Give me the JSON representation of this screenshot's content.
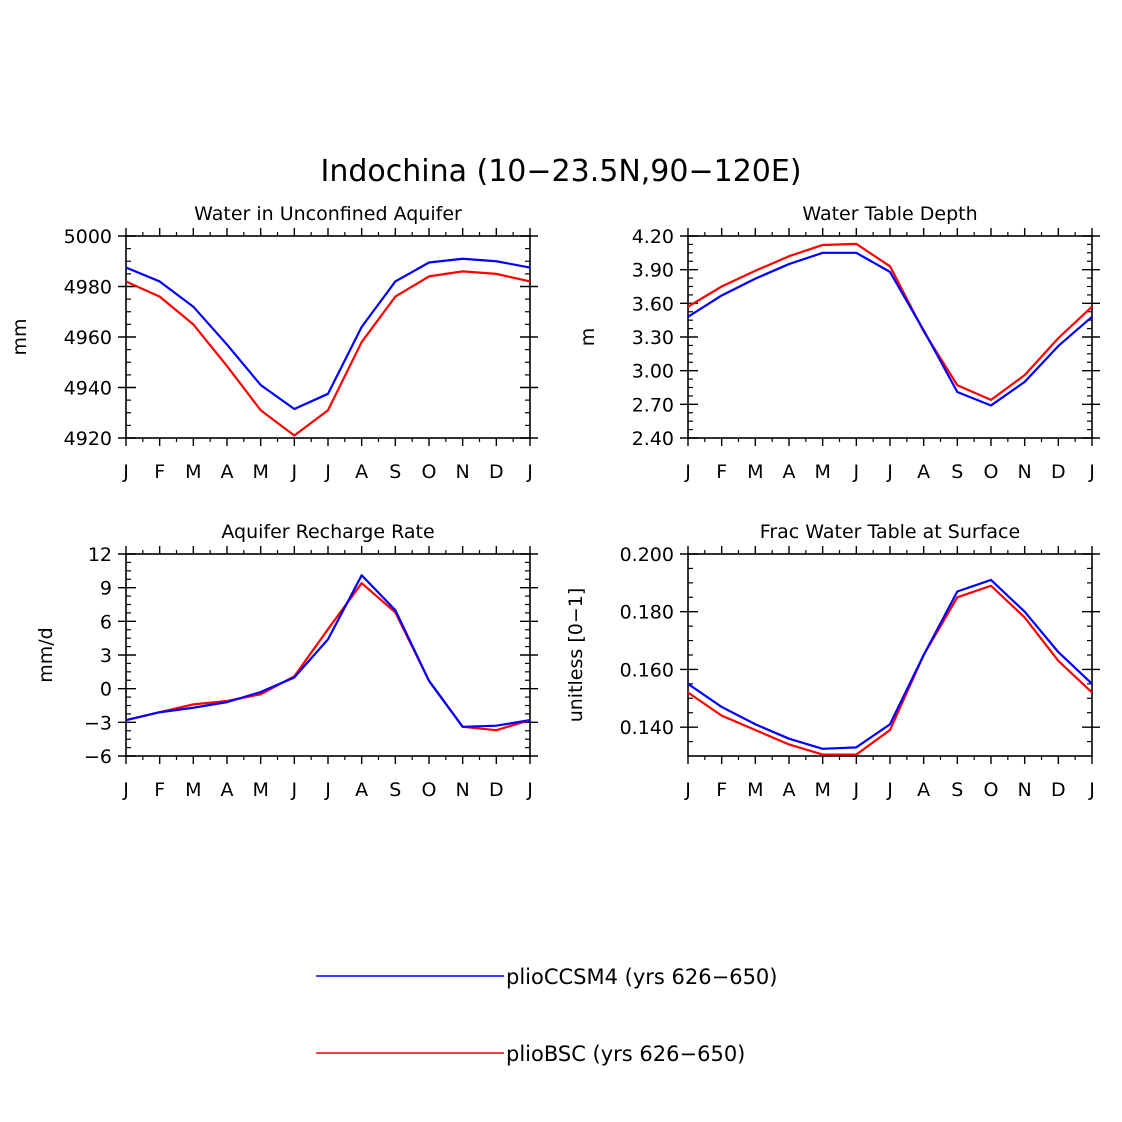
{
  "page_title": "Indochina (10−23.5N,90−120E)",
  "colors": {
    "pliocCSM4": "#0000ff",
    "plioBSC": "#ff0000",
    "axis": "#000000"
  },
  "legend": {
    "entries": [
      {
        "label": "plioCCSM4 (yrs 626−650)",
        "color": "#0000ff"
      },
      {
        "label": "plioBSC (yrs 626−650)",
        "color": "#ff0000"
      }
    ]
  },
  "chart_data": [
    {
      "type": "line",
      "title": "Water in Unconfined Aquifer",
      "ylabel": "mm",
      "xlabel": "",
      "categories": [
        "J",
        "F",
        "M",
        "A",
        "M",
        "J",
        "J",
        "A",
        "S",
        "O",
        "N",
        "D",
        "J"
      ],
      "ylim": [
        4920,
        5000
      ],
      "yticks": [
        4920,
        4940,
        4960,
        4980,
        5000
      ],
      "ytick_labels": [
        "4920",
        "4940",
        "4960",
        "4980",
        "5000"
      ],
      "series": [
        {
          "name": "plioCCSM4 (yrs 626−650)",
          "color": "#0000ff",
          "values": [
            4987.5,
            4982,
            4972,
            4957,
            4941,
            4931.5,
            4937.5,
            4964,
            4982,
            4989.5,
            4991,
            4990,
            4987.5
          ]
        },
        {
          "name": "plioBSC (yrs 626−650)",
          "color": "#ff0000",
          "values": [
            4982,
            4976,
            4965,
            4948.5,
            4931,
            4921,
            4931,
            4958,
            4976,
            4984,
            4986,
            4985,
            4982
          ]
        }
      ]
    },
    {
      "type": "line",
      "title": "Water Table Depth",
      "ylabel": "m",
      "xlabel": "",
      "categories": [
        "J",
        "F",
        "M",
        "A",
        "M",
        "J",
        "J",
        "A",
        "S",
        "O",
        "N",
        "D",
        "J"
      ],
      "ylim": [
        2.4,
        4.2
      ],
      "yticks": [
        2.4,
        2.7,
        3.0,
        3.3,
        3.6,
        3.9,
        4.2
      ],
      "ytick_labels": [
        "2.40",
        "2.70",
        "3.00",
        "3.30",
        "3.60",
        "3.90",
        "4.20"
      ],
      "series": [
        {
          "name": "plioCCSM4 (yrs 626−650)",
          "color": "#0000ff",
          "values": [
            3.48,
            3.67,
            3.82,
            3.95,
            4.05,
            4.05,
            3.88,
            3.36,
            2.81,
            2.69,
            2.9,
            3.22,
            3.48
          ]
        },
        {
          "name": "plioBSC (yrs 626−650)",
          "color": "#ff0000",
          "values": [
            3.57,
            3.75,
            3.89,
            4.02,
            4.12,
            4.13,
            3.93,
            3.35,
            2.87,
            2.74,
            2.96,
            3.29,
            3.57
          ]
        }
      ]
    },
    {
      "type": "line",
      "title": "Aquifer Recharge Rate",
      "ylabel": "mm/d",
      "xlabel": "",
      "categories": [
        "J",
        "F",
        "M",
        "A",
        "M",
        "J",
        "J",
        "A",
        "S",
        "O",
        "N",
        "D",
        "J"
      ],
      "ylim": [
        -6,
        12
      ],
      "yticks": [
        -6,
        -3,
        0,
        3,
        6,
        9,
        12
      ],
      "ytick_labels": [
        "−6",
        "−3",
        "0",
        "3",
        "6",
        "9",
        "12"
      ],
      "series": [
        {
          "name": "plioCCSM4 (yrs 626−650)",
          "color": "#0000ff",
          "values": [
            -2.8,
            -2.1,
            -1.7,
            -1.2,
            -0.3,
            1.0,
            4.4,
            10.1,
            7.0,
            0.7,
            -3.4,
            -3.3,
            -2.8
          ]
        },
        {
          "name": "plioBSC (yrs 626−650)",
          "color": "#ff0000",
          "values": [
            -2.8,
            -2.1,
            -1.4,
            -1.1,
            -0.5,
            1.1,
            5.3,
            9.4,
            6.8,
            0.7,
            -3.4,
            -3.7,
            -2.8
          ]
        }
      ]
    },
    {
      "type": "line",
      "title": "Frac Water Table at Surface",
      "ylabel": "unitless [0−1]",
      "xlabel": "",
      "categories": [
        "J",
        "F",
        "M",
        "A",
        "M",
        "J",
        "J",
        "A",
        "S",
        "O",
        "N",
        "D",
        "J"
      ],
      "ylim": [
        0.13,
        0.2
      ],
      "yticks": [
        0.14,
        0.16,
        0.18,
        0.2
      ],
      "ytick_labels": [
        "0.140",
        "0.160",
        "0.180",
        "0.200"
      ],
      "series": [
        {
          "name": "plioCCSM4 (yrs 626−650)",
          "color": "#0000ff",
          "values": [
            0.155,
            0.147,
            0.141,
            0.136,
            0.1325,
            0.133,
            0.141,
            0.165,
            0.187,
            0.191,
            0.18,
            0.166,
            0.155
          ]
        },
        {
          "name": "plioBSC (yrs 626−650)",
          "color": "#ff0000",
          "values": [
            0.152,
            0.144,
            0.139,
            0.134,
            0.1305,
            0.1305,
            0.139,
            0.165,
            0.185,
            0.189,
            0.178,
            0.163,
            0.152
          ]
        }
      ]
    }
  ]
}
